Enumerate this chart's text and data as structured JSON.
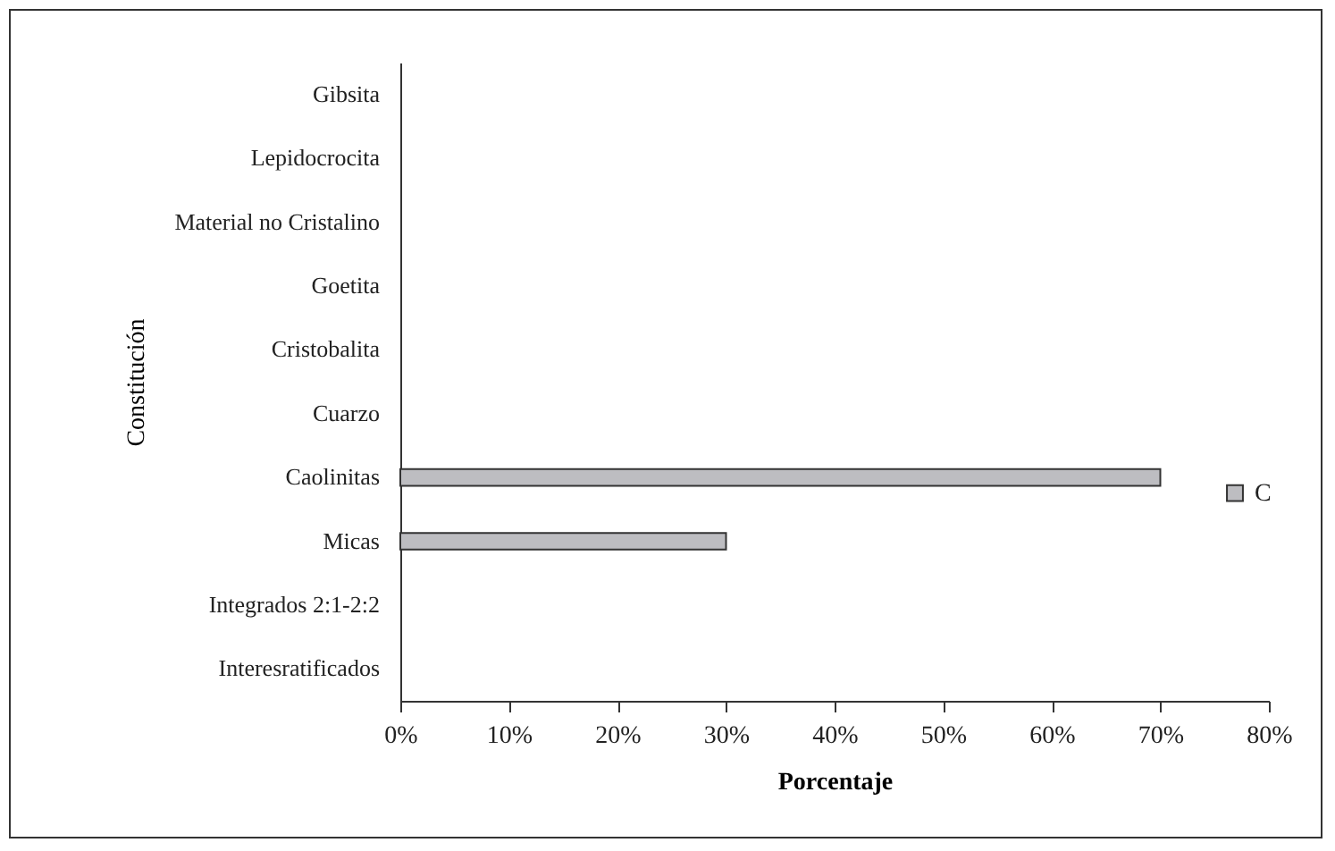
{
  "chart_data": {
    "type": "bar",
    "orientation": "horizontal",
    "xlabel": "Porcentaje",
    "ylabel": "Constitución",
    "categories": [
      "Gibsita",
      "Lepidocrocita",
      "Material no Cristalino",
      "Goetita",
      "Cristobalita",
      "Cuarzo",
      "Caolinitas",
      "Micas",
      "Integrados 2:1-2:2",
      "Interesratificados"
    ],
    "series": [
      {
        "name": "C",
        "color": "#bdbdc1",
        "values": [
          null,
          null,
          null,
          null,
          null,
          null,
          70,
          30,
          null,
          null
        ]
      }
    ],
    "xlim": [
      0,
      80
    ],
    "xticks": [
      {
        "value": 0,
        "label": "0%"
      },
      {
        "value": 10,
        "label": "10%"
      },
      {
        "value": 20,
        "label": "20%"
      },
      {
        "value": 30,
        "label": "30%"
      },
      {
        "value": 40,
        "label": "40%"
      },
      {
        "value": 50,
        "label": "50%"
      },
      {
        "value": 60,
        "label": "60%"
      },
      {
        "value": 70,
        "label": "70%"
      },
      {
        "value": 80,
        "label": "80%"
      }
    ],
    "grid": false,
    "legend": "right"
  }
}
